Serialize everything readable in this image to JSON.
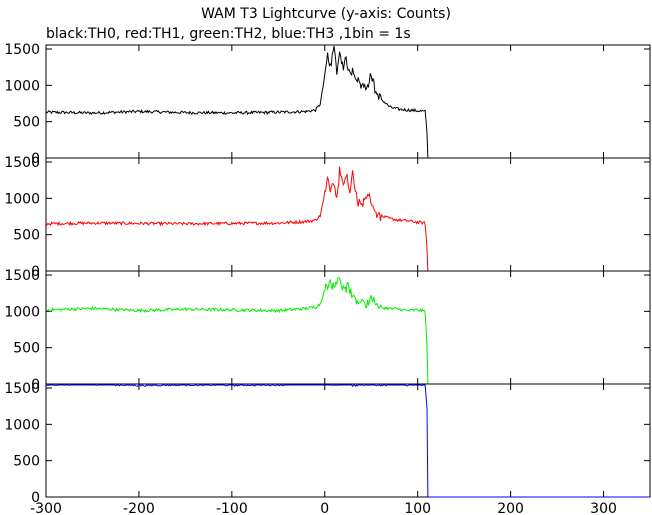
{
  "chart_data": {
    "type": "line",
    "title": "WAM T3 Lightcurve (y-axis: Counts)",
    "subtitle": "black:TH0, red:TH1, green:TH2, blue:TH3 ,1bin = 1s",
    "xlim": [
      -300,
      350
    ],
    "x_ticks": [
      "-300",
      "-200",
      "-100",
      "0",
      "100",
      "200",
      "300"
    ],
    "grid": false,
    "panels": [
      {
        "name": "TH0",
        "color": "#000000",
        "ylim": [
          0,
          1500
        ],
        "y_ticks": [
          "0",
          "500",
          "1000",
          "1500"
        ],
        "series": {
          "x": [
            -300,
            -250,
            -200,
            -150,
            -100,
            -50,
            -20,
            -10,
            -5,
            0,
            3,
            6,
            10,
            13,
            16,
            20,
            23,
            27,
            30,
            35,
            40,
            45,
            50,
            55,
            60,
            65,
            70,
            80,
            90,
            100,
            108,
            110,
            111,
            150,
            200,
            250,
            300,
            350
          ],
          "y": [
            630,
            620,
            640,
            625,
            620,
            630,
            640,
            660,
            740,
            1120,
            1420,
            1280,
            1500,
            1180,
            1450,
            1260,
            1350,
            1150,
            1230,
            1080,
            1000,
            980,
            1150,
            900,
            820,
            760,
            700,
            670,
            660,
            650,
            640,
            350,
            0,
            0,
            0,
            0,
            0,
            0
          ]
        }
      },
      {
        "name": "TH1",
        "color": "#ff0000",
        "ylim": [
          0,
          1500
        ],
        "y_ticks": [
          "0",
          "500",
          "1000",
          "1500"
        ],
        "series": {
          "x": [
            -300,
            -250,
            -200,
            -150,
            -100,
            -50,
            -20,
            -10,
            -5,
            0,
            3,
            6,
            10,
            13,
            16,
            20,
            23,
            27,
            30,
            35,
            40,
            45,
            50,
            55,
            60,
            65,
            70,
            80,
            90,
            100,
            108,
            110,
            111,
            150,
            200,
            250,
            300,
            350
          ],
          "y": [
            650,
            660,
            655,
            650,
            655,
            660,
            680,
            700,
            760,
            1050,
            1350,
            1150,
            1200,
            1000,
            1400,
            1180,
            1350,
            1050,
            1380,
            950,
            900,
            1050,
            980,
            800,
            760,
            740,
            720,
            700,
            690,
            670,
            660,
            300,
            0,
            0,
            0,
            0,
            0,
            0
          ]
        }
      },
      {
        "name": "TH2",
        "color": "#00ee00",
        "ylim": [
          0,
          1500
        ],
        "y_ticks": [
          "0",
          "500",
          "1000",
          "1500"
        ],
        "series": {
          "x": [
            -300,
            -250,
            -200,
            -150,
            -100,
            -50,
            -20,
            -10,
            -5,
            0,
            5,
            10,
            15,
            20,
            25,
            30,
            35,
            40,
            45,
            50,
            60,
            70,
            80,
            90,
            100,
            108,
            110,
            111,
            150,
            200,
            250,
            300,
            350
          ],
          "y": [
            1020,
            1040,
            1010,
            1030,
            1020,
            1010,
            1040,
            1060,
            1100,
            1300,
            1420,
            1320,
            1510,
            1280,
            1350,
            1200,
            1100,
            1180,
            1080,
            1200,
            1050,
            1040,
            1030,
            1010,
            1020,
            1000,
            500,
            0,
            0,
            0,
            0,
            0,
            0
          ]
        }
      },
      {
        "name": "TH3",
        "color": "#0000ff",
        "ylim": [
          0,
          1500
        ],
        "y_ticks": [
          "0",
          "500",
          "1000",
          "1500"
        ],
        "series": {
          "x": [
            -300,
            -250,
            -200,
            -150,
            -100,
            -50,
            -10,
            0,
            5,
            10,
            20,
            30,
            40,
            50,
            60,
            80,
            100,
            108,
            110,
            111,
            150,
            200,
            250,
            300,
            350
          ],
          "y": [
            1550,
            1560,
            1540,
            1550,
            1545,
            1550,
            1560,
            1600,
            1560,
            1550,
            1570,
            1540,
            1555,
            1545,
            1550,
            1550,
            1545,
            1540,
            1200,
            0,
            0,
            0,
            0,
            0,
            0
          ]
        }
      }
    ]
  }
}
